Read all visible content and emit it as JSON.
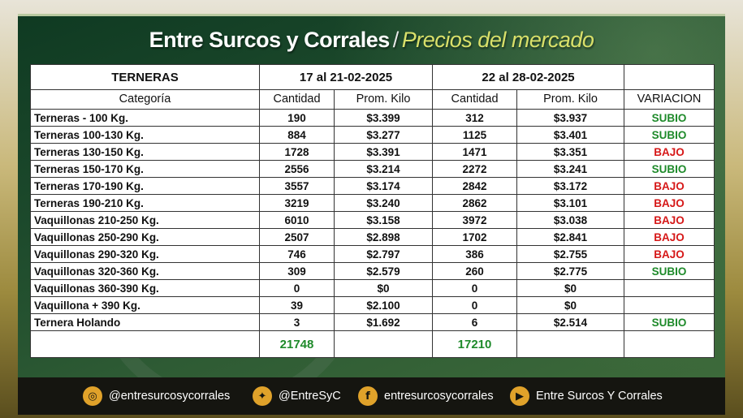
{
  "title": {
    "main": "Entre Surcos y Corrales",
    "separator": "/",
    "subtitle": "Precios del mercado"
  },
  "table": {
    "header1": [
      "TERNERAS",
      "17 al 21-02-2025",
      "22 al 28-02-2025",
      ""
    ],
    "header2": [
      "Categoría",
      "Cantidad",
      "Prom. Kilo",
      "Cantidad",
      "Prom. Kilo",
      "VARIACION"
    ],
    "rows": [
      {
        "cat": "Terneras - 100 Kg.",
        "c1": "190",
        "p1": "$3.399",
        "c2": "312",
        "p2": "$3.937",
        "var": "SUBIO"
      },
      {
        "cat": "Terneras 100-130 Kg.",
        "c1": "884",
        "p1": "$3.277",
        "c2": "1125",
        "p2": "$3.401",
        "var": "SUBIO"
      },
      {
        "cat": "Terneras 130-150 Kg.",
        "c1": "1728",
        "p1": "$3.391",
        "c2": "1471",
        "p2": "$3.351",
        "var": "BAJO"
      },
      {
        "cat": "Terneras 150-170 Kg.",
        "c1": "2556",
        "p1": "$3.214",
        "c2": "2272",
        "p2": "$3.241",
        "var": "SUBIO"
      },
      {
        "cat": "Terneras 170-190 Kg.",
        "c1": "3557",
        "p1": "$3.174",
        "c2": "2842",
        "p2": "$3.172",
        "var": "BAJO"
      },
      {
        "cat": "Terneras 190-210 Kg.",
        "c1": "3219",
        "p1": "$3.240",
        "c2": "2862",
        "p2": "$3.101",
        "var": "BAJO"
      },
      {
        "cat": "Vaquillonas 210-250 Kg.",
        "c1": "6010",
        "p1": "$3.158",
        "c2": "3972",
        "p2": "$3.038",
        "var": "BAJO"
      },
      {
        "cat": "Vaquillonas 250-290 Kg.",
        "c1": "2507",
        "p1": "$2.898",
        "c2": "1702",
        "p2": "$2.841",
        "var": "BAJO"
      },
      {
        "cat": "Vaquillonas 290-320 Kg.",
        "c1": "746",
        "p1": "$2.797",
        "c2": "386",
        "p2": "$2.755",
        "var": "BAJO"
      },
      {
        "cat": "Vaquillonas 320-360 Kg.",
        "c1": "309",
        "p1": "$2.579",
        "c2": "260",
        "p2": "$2.775",
        "var": "SUBIO"
      },
      {
        "cat": "Vaquillonas 360-390 Kg.",
        "c1": "0",
        "p1": "$0",
        "c2": "0",
        "p2": "$0",
        "var": ""
      },
      {
        "cat": "Vaquillona + 390 Kg.",
        "c1": "39",
        "p1": "$2.100",
        "c2": "0",
        "p2": "$0",
        "var": ""
      },
      {
        "cat": "Ternera Holando",
        "c1": "3",
        "p1": "$1.692",
        "c2": "6",
        "p2": "$2.514",
        "var": "SUBIO"
      }
    ],
    "totals": {
      "c1": "21748",
      "c2": "17210"
    }
  },
  "colors": {
    "up": "#1e8a2a",
    "down": "#d61818",
    "accent": "#e0a22a"
  },
  "footer": {
    "instagram": {
      "icon": "instagram-icon",
      "label": "@entresurcosycorrales"
    },
    "twitter": {
      "icon": "twitter-icon",
      "label": "@EntreSyC"
    },
    "facebook": {
      "icon": "facebook-icon",
      "label": "entresurcosycorrales"
    },
    "youtube": {
      "icon": "youtube-icon",
      "label": "Entre Surcos Y Corrales"
    }
  }
}
